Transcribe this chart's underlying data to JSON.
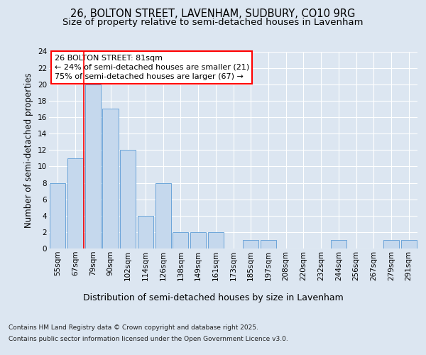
{
  "title1": "26, BOLTON STREET, LAVENHAM, SUDBURY, CO10 9RG",
  "title2": "Size of property relative to semi-detached houses in Lavenham",
  "xlabel": "Distribution of semi-detached houses by size in Lavenham",
  "ylabel": "Number of semi-detached properties",
  "categories": [
    "55sqm",
    "67sqm",
    "79sqm",
    "90sqm",
    "102sqm",
    "114sqm",
    "126sqm",
    "138sqm",
    "149sqm",
    "161sqm",
    "173sqm",
    "185sqm",
    "197sqm",
    "208sqm",
    "220sqm",
    "232sqm",
    "244sqm",
    "256sqm",
    "267sqm",
    "279sqm",
    "291sqm"
  ],
  "values": [
    8,
    11,
    20,
    17,
    12,
    4,
    8,
    2,
    2,
    2,
    0,
    1,
    1,
    0,
    0,
    0,
    1,
    0,
    0,
    1,
    1
  ],
  "bar_color": "#c5d8ed",
  "bar_edge_color": "#5b9bd5",
  "property_line_idx": 2,
  "annotation_title": "26 BOLTON STREET: 81sqm",
  "annotation_line1": "← 24% of semi-detached houses are smaller (21)",
  "annotation_line2": "75% of semi-detached houses are larger (67) →",
  "ylim": [
    0,
    24
  ],
  "yticks": [
    0,
    2,
    4,
    6,
    8,
    10,
    12,
    14,
    16,
    18,
    20,
    22,
    24
  ],
  "footer1": "Contains HM Land Registry data © Crown copyright and database right 2025.",
  "footer2": "Contains public sector information licensed under the Open Government Licence v3.0.",
  "bg_color": "#dce6f1",
  "grid_color": "#ffffff",
  "title_fontsize": 10.5,
  "subtitle_fontsize": 9.5,
  "tick_fontsize": 7.5,
  "ylabel_fontsize": 8.5,
  "xlabel_fontsize": 9,
  "annotation_fontsize": 8,
  "footer_fontsize": 6.5
}
